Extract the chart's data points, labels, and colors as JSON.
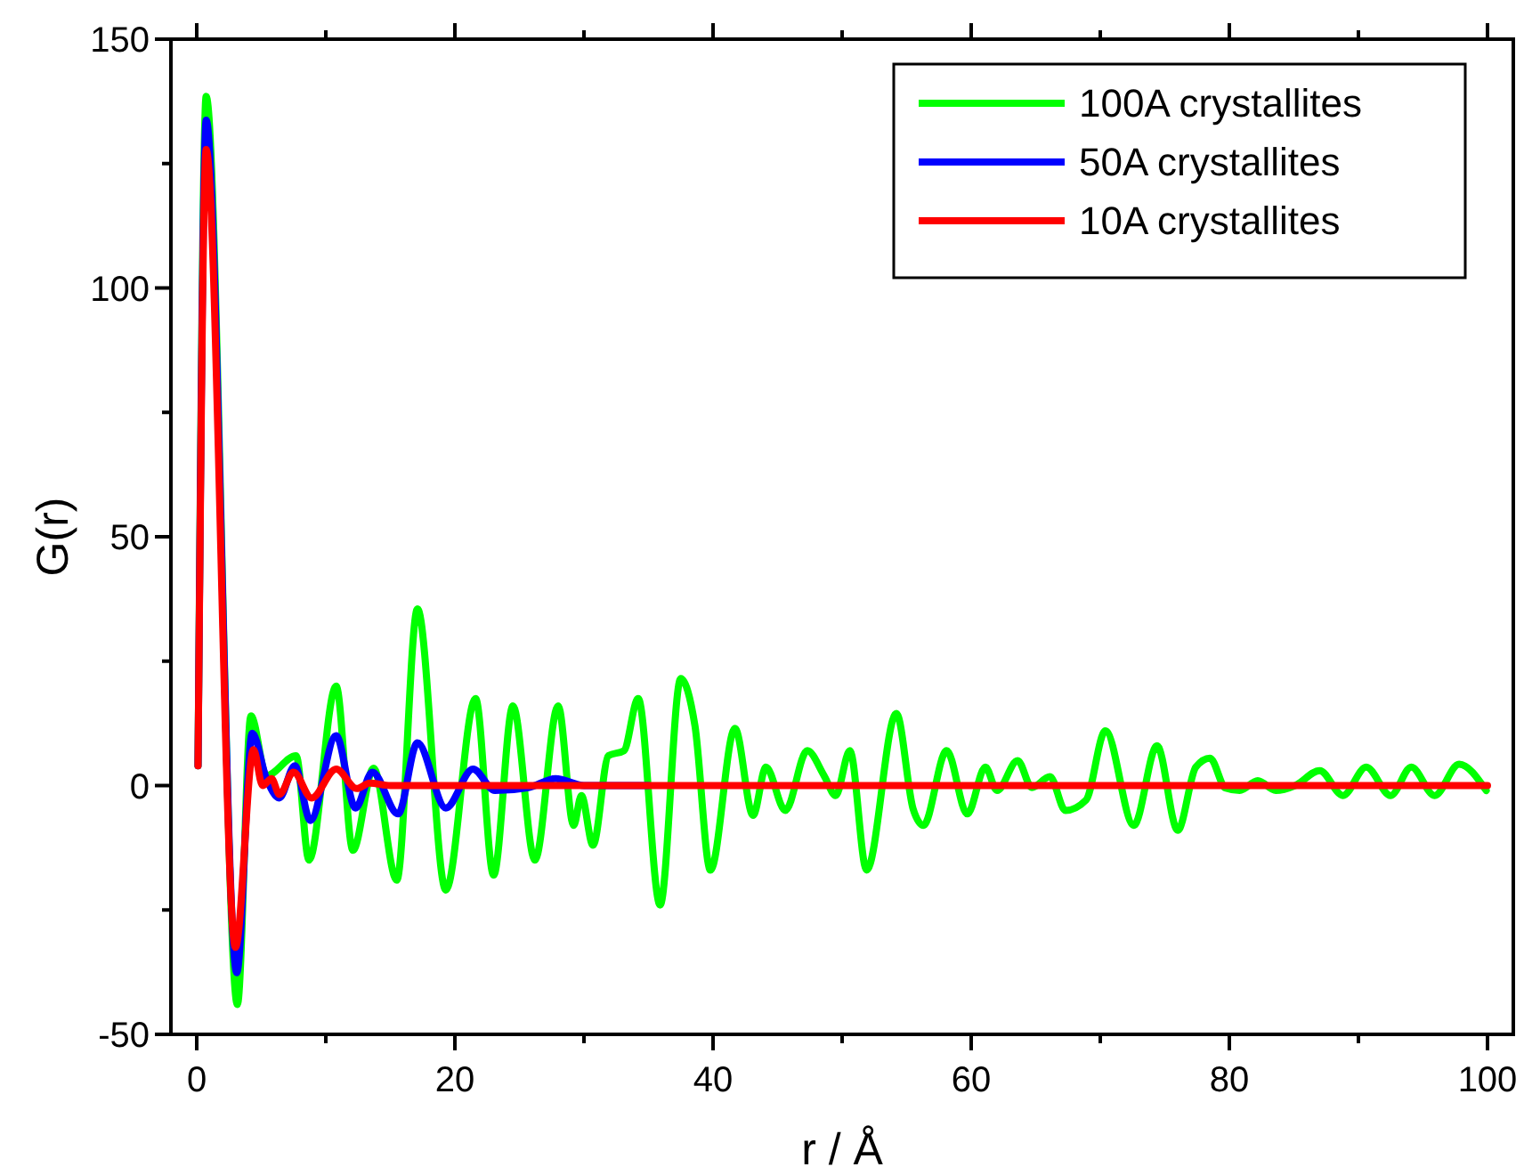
{
  "chart_data": {
    "type": "line",
    "xlabel": "r / Å",
    "ylabel": "G(r)",
    "xlim": [
      -2,
      102
    ],
    "ylim": [
      -50,
      150
    ],
    "xticks": [
      0,
      {
        "value": 10,
        "label": null
      },
      20,
      {
        "value": 30,
        "label": null
      },
      40,
      {
        "value": 50,
        "label": null
      },
      60,
      {
        "value": 70,
        "label": null
      },
      80,
      {
        "value": 90,
        "label": null
      },
      100
    ],
    "yticks": [
      -50,
      {
        "value": -25,
        "label": null
      },
      0,
      {
        "value": 25,
        "label": null
      },
      50,
      {
        "value": 75,
        "label": null
      },
      100,
      {
        "value": 125,
        "label": null
      },
      150
    ],
    "grid": false,
    "legend": "top right",
    "marker": "none",
    "line_style": "solid",
    "series": [
      {
        "name": "100A crystallites",
        "color": "#00ff00",
        "x": [
          0.1,
          0.73,
          3.15,
          4.2,
          5.4,
          7.7,
          8.7,
          10.8,
          12.1,
          13.7,
          15.5,
          17.1,
          19.3,
          21.6,
          23.0,
          24.5,
          26.2,
          28.0,
          29.2,
          29.8,
          30.7,
          31.9,
          33.1,
          34.2,
          35.9,
          37.5,
          38.6,
          39.8,
          41.7,
          43.1,
          44.1,
          45.6,
          47.3,
          48.6,
          49.5,
          50.6,
          51.9,
          54.2,
          55.5,
          56.3,
          58.1,
          59.7,
          61.1,
          62.0,
          63.6,
          64.7,
          66.1,
          67.3,
          68.9,
          70.4,
          72.6,
          74.4,
          76.0,
          77.4,
          78.5,
          79.7,
          80.8,
          82.2,
          83.6,
          85.1,
          87.0,
          88.8,
          90.6,
          92.5,
          94.1,
          95.9,
          97.8,
          99.9
        ],
        "values": [
          4,
          138.5,
          -44,
          14,
          2,
          6,
          -15,
          20,
          -13,
          3.5,
          -19,
          35.5,
          -21,
          17.5,
          -18,
          16,
          -15,
          16,
          -8,
          -2,
          -12,
          6,
          7,
          17.5,
          -24,
          21.5,
          12,
          -17,
          11.5,
          -6,
          3.7,
          -5,
          7,
          2,
          -2,
          7,
          -17,
          14.5,
          -4.7,
          -8,
          7,
          -5.7,
          3.7,
          -1,
          5,
          -0.4,
          1.8,
          -5,
          -2.9,
          11,
          -8,
          8,
          -9,
          3.7,
          5.5,
          -0.5,
          -1,
          1,
          -1,
          0,
          3,
          -2,
          3.7,
          -2,
          3.7,
          -2,
          4.3,
          -1
        ]
      },
      {
        "name": "50A crystallites",
        "color": "#0000ff",
        "x": [
          0.1,
          0.73,
          3.1,
          4.3,
          5.4,
          6.4,
          7.6,
          8.8,
          10.8,
          12.3,
          13.6,
          15.6,
          17.1,
          19.3,
          21.4,
          23.1,
          25.7,
          27.8,
          30,
          35
        ],
        "values": [
          4,
          133.7,
          -37.6,
          10.5,
          1.4,
          -2.5,
          4,
          -7,
          10,
          -4.5,
          2.7,
          -5.7,
          8.6,
          -4.5,
          3.3,
          -1,
          -0.4,
          1.4,
          0,
          0
        ]
      },
      {
        "name": "10A crystallites",
        "color": "#ff0000",
        "x": [
          0.1,
          0.73,
          3.0,
          4.4,
          5.1,
          5.8,
          6.4,
          7.5,
          8.9,
          10.8,
          12.4,
          13.4,
          15,
          20,
          30,
          40,
          50,
          60,
          70,
          80,
          90,
          100
        ],
        "values": [
          4,
          127.8,
          -32.5,
          7.2,
          0,
          1.4,
          -1.8,
          2.7,
          -2.5,
          3.3,
          -0.6,
          0.5,
          0,
          0,
          0,
          0,
          0,
          0,
          0,
          0,
          0,
          0
        ]
      }
    ]
  }
}
